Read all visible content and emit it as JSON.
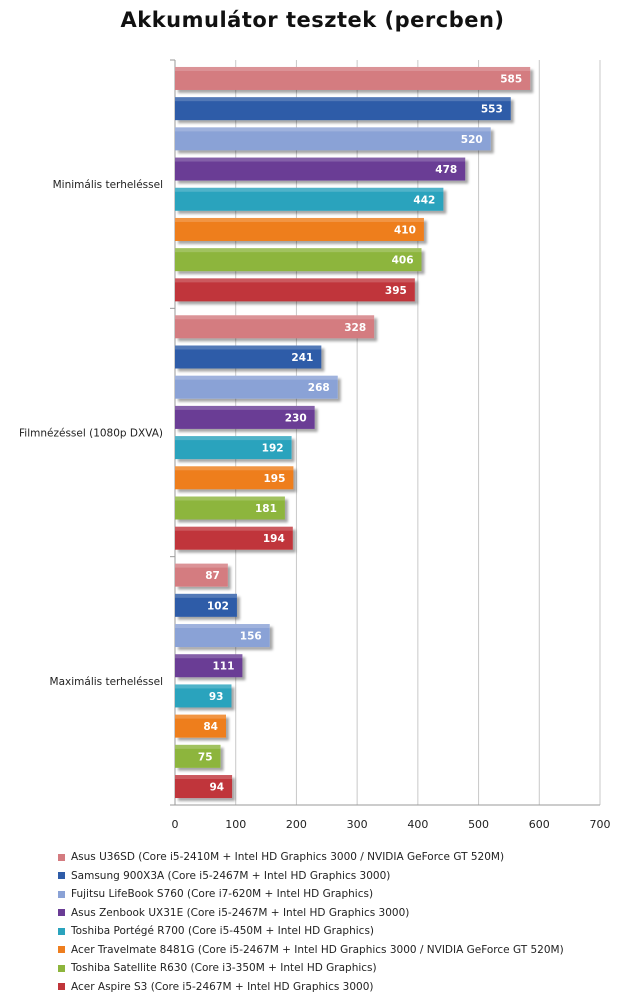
{
  "chart_data": {
    "type": "bar",
    "orientation": "horizontal",
    "title": "Akkumulátor tesztek (percben)",
    "xlabel": "",
    "ylabel": "",
    "xlim": [
      0,
      700
    ],
    "xticks": [
      0,
      100,
      200,
      300,
      400,
      500,
      600,
      700
    ],
    "grid": "vertical",
    "legend_position": "bottom",
    "categories": [
      "Minimális terheléssel",
      "Filmnézéssel (1080p DXVA)",
      "Maximális terheléssel"
    ],
    "series": [
      {
        "name": "Asus U36SD (Core i5-2410M + Intel HD Graphics 3000 / NVIDIA GeForce GT 520M)",
        "color": "#d47b80",
        "values": [
          585,
          328,
          87
        ]
      },
      {
        "name": "Samsung 900X3A (Core i5-2467M + Intel HD Graphics 3000)",
        "color": "#2f5ca8",
        "values": [
          553,
          241,
          102
        ]
      },
      {
        "name": "Fujitsu LifeBook S760 (Core i7-620M + Intel HD Graphics)",
        "color": "#8aa2d6",
        "values": [
          520,
          268,
          156
        ]
      },
      {
        "name": "Asus Zenbook UX31E (Core i5-2467M + Intel HD Graphics 3000)",
        "color": "#6a3c95",
        "values": [
          478,
          230,
          111
        ]
      },
      {
        "name": "Toshiba Portégé R700 (Core i5-450M + Intel HD Graphics)",
        "color": "#2aa3bd",
        "values": [
          442,
          192,
          93
        ]
      },
      {
        "name": "Acer Travelmate 8481G (Core i5-2467M + Intel HD Graphics 3000 / NVIDIA GeForce GT 520M)",
        "color": "#ee7e1f",
        "values": [
          410,
          195,
          84
        ]
      },
      {
        "name": "Toshiba Satellite R630 (Core i3-350M + Intel HD Graphics)",
        "color": "#8db53c",
        "values": [
          406,
          181,
          75
        ]
      },
      {
        "name": "Acer Aspire S3 (Core i5-2467M + Intel HD Graphics 3000)",
        "color": "#c0353a",
        "values": [
          395,
          194,
          94
        ]
      }
    ]
  }
}
